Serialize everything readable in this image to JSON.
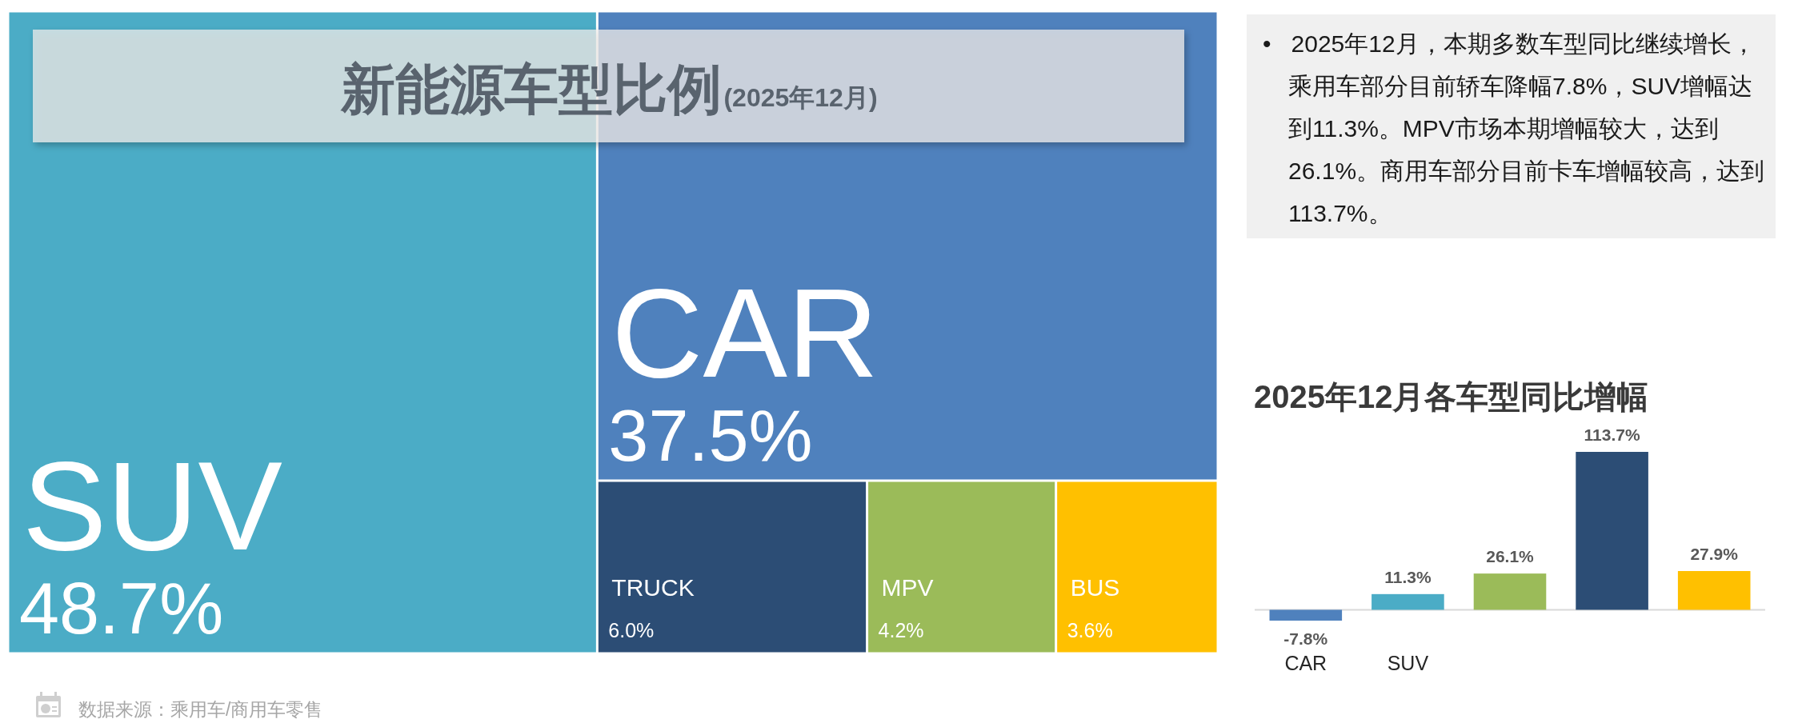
{
  "chart_data": [
    {
      "type": "other",
      "title": "新能源车型比例",
      "subtitle": "(2025年12月)",
      "categories": [
        "SUV",
        "CAR",
        "TRUCK",
        "MPV",
        "BUS"
      ],
      "values": [
        48.7,
        37.5,
        6.0,
        4.2,
        3.6
      ],
      "colors": [
        "#4bacc6",
        "#4f81bd",
        "#2c4d75",
        "#9bbb59",
        "#ffc000"
      ],
      "value_labels": [
        "48.7%",
        "37.5%",
        "6.0%",
        "4.2%",
        "3.6%"
      ],
      "annotations": [
        "数据来源：乘用车/商用车零售"
      ]
    },
    {
      "type": "other",
      "annotations": [
        "•   2025年12月，本期多数车型同比继续增长，乘用车部分目前轿车降幅7.8%，SUV增幅达到11.3%。MPV市场本期增幅较大，达到26.1%。商用车部分目前卡车增幅较高，达到113.7%。"
      ]
    },
    {
      "type": "bar",
      "title": "2025年12月各车型同比增幅",
      "categories": [
        "CAR",
        "SUV",
        null,
        null,
        null
      ],
      "values": [
        -7.8,
        11.3,
        26.1,
        113.7,
        27.9
      ],
      "colors": [
        "#4f81bd",
        "#4bacc6",
        "#9bbb59",
        "#2c4d75",
        "#ffc000"
      ],
      "value_labels": [
        "-7.8%",
        "11.3%",
        "26.1%",
        "113.7%",
        "27.9%"
      ]
    }
  ]
}
